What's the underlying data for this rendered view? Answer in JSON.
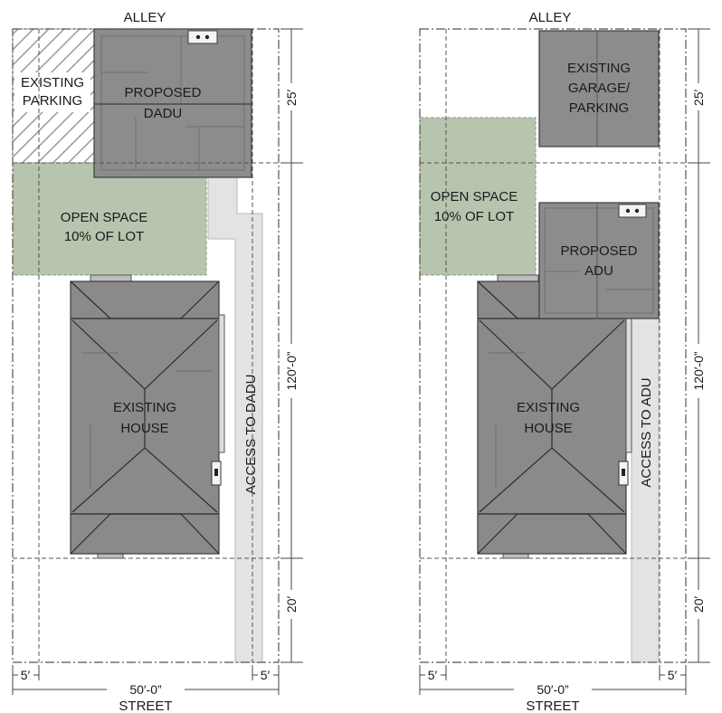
{
  "left_plan": {
    "alley": "ALLEY",
    "street": "STREET",
    "parking_line1": "EXISTING",
    "parking_line2": "PARKING",
    "unit_line1": "PROPOSED",
    "unit_line2": "DADU",
    "open_line1": "OPEN SPACE",
    "open_line2": "10% OF LOT",
    "house_line1": "EXISTING",
    "house_line2": "HOUSE",
    "access": "ACCESS TO DADU",
    "dim_rear": "25′",
    "dim_depth": "120′-0”",
    "dim_front": "20′",
    "dim_side_left": "5′",
    "dim_side_right": "5′",
    "dim_width": "50′-0”"
  },
  "right_plan": {
    "alley": "ALLEY",
    "street": "STREET",
    "garage_line1": "EXISTING",
    "garage_line2": "GARAGE/",
    "garage_line3": "PARKING",
    "unit_line1": "PROPOSED",
    "unit_line2": "ADU",
    "open_line1": "OPEN SPACE",
    "open_line2": "10% OF LOT",
    "house_line1": "EXISTING",
    "house_line2": "HOUSE",
    "access": "ACCESS TO ADU",
    "dim_rear": "25′",
    "dim_depth": "120′-0”",
    "dim_front": "20′",
    "dim_side_left": "5′",
    "dim_side_right": "5′",
    "dim_width": "50′-0”"
  }
}
